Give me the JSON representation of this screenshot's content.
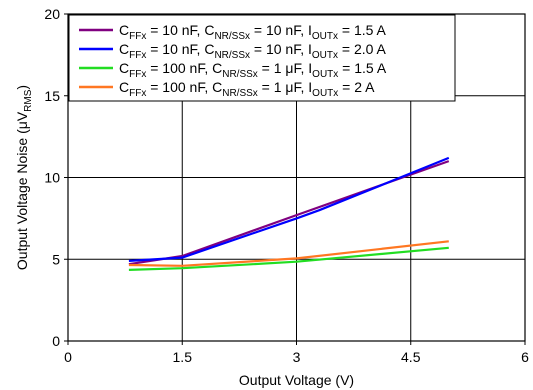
{
  "chart_data": {
    "type": "line",
    "xlabel": "Output Voltage (V)",
    "ylabel_main": "Output Voltage Noise (",
    "ylabel_unit": "μV",
    "ylabel_sub": "RMS",
    "ylabel_close": ")",
    "xlim": [
      0,
      6
    ],
    "ylim": [
      0,
      20
    ],
    "xticks": [
      0,
      1.5,
      3,
      4.5,
      6
    ],
    "xtick_labels": [
      "0",
      "1.5",
      "3",
      "4.5",
      "6"
    ],
    "yticks": [
      0,
      5,
      10,
      15,
      20
    ],
    "ytick_labels": [
      "0",
      "5",
      "10",
      "15",
      "20"
    ],
    "grid": true,
    "legend_position": "top-left",
    "series": [
      {
        "name": "CFFx = 10 nF, CNR/SSx = 10 nF, IOUTx = 1.5 A",
        "legend_parts": [
          {
            "t": "C",
            "sub": false
          },
          {
            "t": "FFx",
            "sub": true
          },
          {
            "t": " = 10 nF, C",
            "sub": false
          },
          {
            "t": "NR/SSx",
            "sub": true
          },
          {
            "t": " = 10 nF, I",
            "sub": false
          },
          {
            "t": "OUTx",
            "sub": true
          },
          {
            "t": " = 1.5 A",
            "sub": false
          }
        ],
        "color": "#800080",
        "x": [
          0.8,
          1.5,
          3.0,
          5.0
        ],
        "y": [
          4.7,
          5.2,
          7.7,
          11.0
        ]
      },
      {
        "name": "CFFx = 10 nF, CNR/SSx = 10 nF, IOUTx = 2.0 A",
        "legend_parts": [
          {
            "t": "C",
            "sub": false
          },
          {
            "t": "FFx",
            "sub": true
          },
          {
            "t": " = 10 nF, C",
            "sub": false
          },
          {
            "t": "NR/SSx",
            "sub": true
          },
          {
            "t": " = 10 nF, I",
            "sub": false
          },
          {
            "t": "OUTx",
            "sub": true
          },
          {
            "t": " = 2.0 A",
            "sub": false
          }
        ],
        "color": "#0000ff",
        "x": [
          0.8,
          1.5,
          3.0,
          3.3,
          5.0
        ],
        "y": [
          4.9,
          5.1,
          7.5,
          8.0,
          11.2
        ]
      },
      {
        "name": "CFFx = 100 nF, CNR/SSx = 1 μF, IOUTx = 1.5 A",
        "legend_parts": [
          {
            "t": "C",
            "sub": false
          },
          {
            "t": "FFx",
            "sub": true
          },
          {
            "t": " = 100 nF, C",
            "sub": false
          },
          {
            "t": "NR/SSx",
            "sub": true
          },
          {
            "t": " = 1 μF, I",
            "sub": false
          },
          {
            "t": "OUTx",
            "sub": true
          },
          {
            "t": " = 1.5 A",
            "sub": false
          }
        ],
        "color": "#22dd22",
        "x": [
          0.8,
          1.5,
          3.0,
          5.0
        ],
        "y": [
          4.35,
          4.45,
          4.85,
          5.7
        ]
      },
      {
        "name": "CFFx = 100 nF, CNR/SSx = 1 μF, IOUTx = 2 A",
        "legend_parts": [
          {
            "t": "C",
            "sub": false
          },
          {
            "t": "FFx",
            "sub": true
          },
          {
            "t": " = 100 nF, C",
            "sub": false
          },
          {
            "t": "NR/SSx",
            "sub": true
          },
          {
            "t": " = 1 μF, I",
            "sub": false
          },
          {
            "t": "OUTx",
            "sub": true
          },
          {
            "t": " = 2 A",
            "sub": false
          }
        ],
        "color": "#ff7722",
        "x": [
          0.8,
          1.5,
          3.0,
          5.0
        ],
        "y": [
          4.65,
          4.6,
          5.05,
          6.1
        ]
      }
    ]
  }
}
